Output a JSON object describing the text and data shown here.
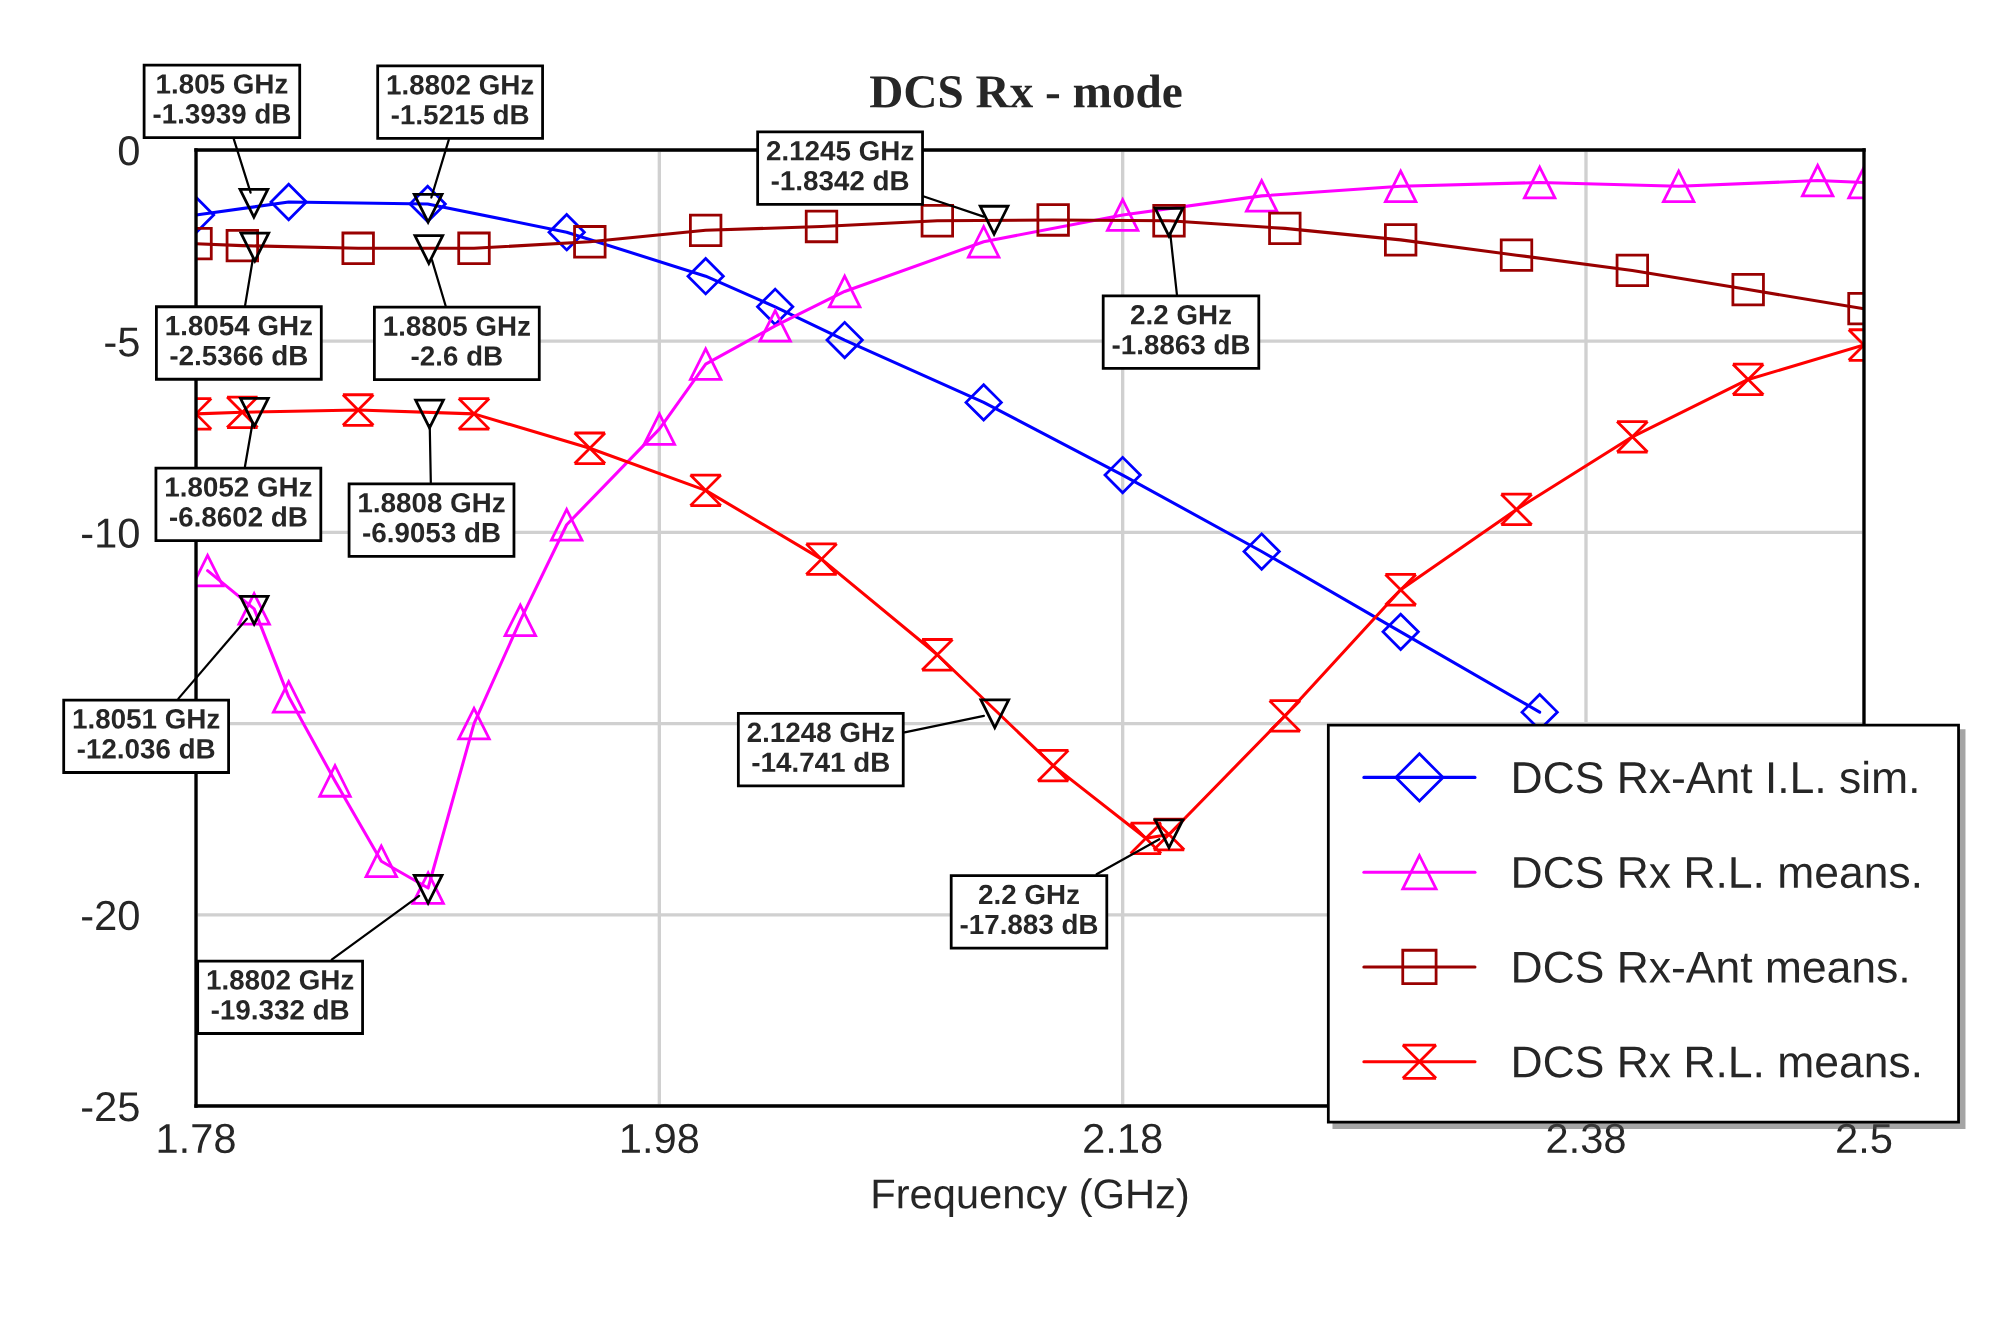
{
  "chart_data": {
    "type": "line",
    "title": "DCS Rx - mode",
    "xlabel": "Frequency (GHz)",
    "xlim": [
      1.78,
      2.5
    ],
    "xticks": [
      1.78,
      1.98,
      2.18,
      2.38,
      2.5
    ],
    "ylim": [
      -25,
      0
    ],
    "yticks": [
      0,
      -5,
      -10,
      {
        "value": -15,
        "label": null
      },
      -20,
      -25
    ],
    "grid": true,
    "legend": "bottom right",
    "line_style": "solid",
    "series": [
      {
        "name": "DCS Rx-Ant I.L. sim.",
        "color": "#0000ff",
        "marker": "diamond",
        "x": [
          1.78,
          1.82,
          1.88,
          1.94,
          2.0,
          2.03,
          2.06,
          2.12,
          2.18,
          2.24,
          2.3,
          2.36
        ],
        "values": [
          -1.7,
          -1.36,
          -1.41,
          -2.15,
          -3.3,
          -4.1,
          -4.97,
          -6.6,
          -8.5,
          -10.5,
          -12.6,
          -14.7
        ]
      },
      {
        "name": "DCS Rx R.L. means.",
        "color": "#ff00ff",
        "marker": "triangle",
        "x": [
          1.785,
          1.8051,
          1.82,
          1.84,
          1.86,
          1.8802,
          1.9,
          1.92,
          1.94,
          1.98,
          2.0,
          2.03,
          2.06,
          2.12,
          2.18,
          2.24,
          2.3,
          2.36,
          2.42,
          2.48,
          2.5
        ],
        "values": [
          -11.0,
          -12.0,
          -14.3,
          -16.5,
          -18.6,
          -19.3,
          -15.0,
          -12.3,
          -9.8,
          -7.3,
          -5.6,
          -4.6,
          -3.7,
          -2.4,
          -1.7,
          -1.2,
          -0.95,
          -0.85,
          -0.95,
          -0.8,
          -0.85
        ]
      },
      {
        "name": "DCS Rx-Ant means.",
        "color": "#990000",
        "marker": "square",
        "x": [
          1.78,
          1.8,
          1.85,
          1.9,
          1.95,
          2.0,
          2.05,
          2.1,
          2.15,
          2.2,
          2.25,
          2.3,
          2.35,
          2.4,
          2.45,
          2.5
        ],
        "values": [
          -2.45,
          -2.5,
          -2.57,
          -2.57,
          -2.4,
          -2.1,
          -2.0,
          -1.85,
          -1.83,
          -1.85,
          -2.05,
          -2.35,
          -2.75,
          -3.15,
          -3.65,
          -4.15
        ]
      },
      {
        "name": "DCS Rx R.L. means.",
        "color": "#ff0000",
        "marker": "cross",
        "x": [
          1.78,
          1.8,
          1.85,
          1.9,
          1.95,
          2.0,
          2.05,
          2.1,
          2.15,
          2.19,
          2.2,
          2.25,
          2.3,
          2.35,
          2.4,
          2.45,
          2.5
        ],
        "values": [
          -6.9,
          -6.86,
          -6.8,
          -6.9,
          -7.8,
          -8.9,
          -10.7,
          -13.2,
          -16.1,
          -18.0,
          -17.9,
          -14.8,
          -11.5,
          -9.4,
          -7.5,
          -6.0,
          -5.1
        ]
      }
    ],
    "annotations": [
      {
        "text": "1.805 GHz\n-1.3939 dB",
        "x": 1.805,
        "y": -1.3939
      },
      {
        "text": "1.8802 GHz\n-1.5215 dB",
        "x": 1.8802,
        "y": -1.5215
      },
      {
        "text": "2.1245 GHz\n-1.8342 dB",
        "x": 2.1245,
        "y": -1.8342
      },
      {
        "text": "1.8054 GHz\n-2.5366 dB",
        "x": 1.8054,
        "y": -2.5366
      },
      {
        "text": "1.8805 GHz\n-2.6 dB",
        "x": 1.8805,
        "y": -2.6
      },
      {
        "text": "2.2 GHz\n-1.8863 dB",
        "x": 2.2,
        "y": -1.8863
      },
      {
        "text": "1.8052 GHz\n-6.8602 dB",
        "x": 1.8052,
        "y": -6.8602
      },
      {
        "text": "1.8808 GHz\n-6.9053 dB",
        "x": 1.8808,
        "y": -6.9053
      },
      {
        "text": "1.8051 GHz\n-12.036 dB",
        "x": 1.8051,
        "y": -12.036
      },
      {
        "text": "2.1248 GHz\n-14.741 dB",
        "x": 2.1248,
        "y": -14.741
      },
      {
        "text": "1.8802 GHz\n-19.332 dB",
        "x": 1.8802,
        "y": -19.332
      },
      {
        "text": "2.2 GHz\n-17.883 dB",
        "x": 2.2,
        "y": -17.883
      }
    ]
  }
}
